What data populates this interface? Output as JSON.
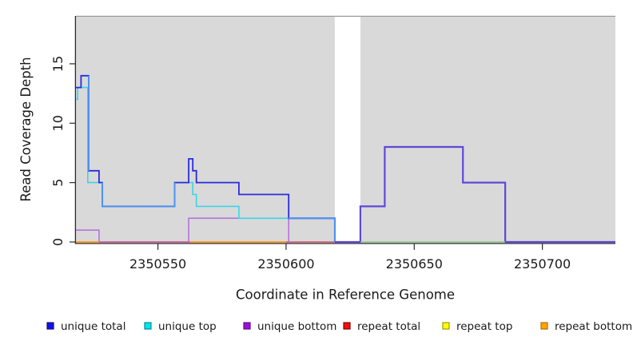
{
  "figure": {
    "x_axis_label": "Coordinate in Reference Genome",
    "y_axis_label": "Read Coverage Depth"
  },
  "chart_data": {
    "type": "line",
    "title": "",
    "xlabel": "Coordinate in Reference Genome",
    "ylabel": "Read Coverage Depth",
    "xlim": [
      2350518,
      2350728.5
    ],
    "ylim": [
      0,
      19
    ],
    "x_ticks": [
      2350550,
      2350600,
      2350650,
      2350700
    ],
    "y_ticks": [
      0,
      5,
      10,
      15
    ],
    "grid": false,
    "plot_bg": "#D9D9D9",
    "masked_region": {
      "x1": 2350619,
      "x2": 2350629
    },
    "series": [
      {
        "name": "unique total",
        "color": "#2B2BDC",
        "segments": [
          [
            2350518,
            2350520,
            13
          ],
          [
            2350520,
            2350523,
            14
          ],
          [
            2350523,
            2350527,
            6
          ],
          [
            2350527,
            2350528.3,
            5
          ],
          [
            2350528.3,
            2350556.5,
            3
          ],
          [
            2350556.5,
            2350562,
            5
          ],
          [
            2350562,
            2350563.6,
            7
          ],
          [
            2350563.6,
            2350565,
            6
          ],
          [
            2350565,
            2350581.6,
            5
          ],
          [
            2350581.6,
            2350601,
            4
          ],
          [
            2350601,
            2350619,
            2
          ],
          [
            2350619,
            2350629,
            0
          ],
          [
            2350629,
            2350638.5,
            3
          ],
          [
            2350638.5,
            2350669,
            8
          ],
          [
            2350669,
            2350685.5,
            5
          ],
          [
            2350685.5,
            2350728.5,
            0
          ]
        ]
      },
      {
        "name": "unique top",
        "color": "#3DD3E6",
        "segments": [
          [
            2350518,
            2350518.7,
            12
          ],
          [
            2350518.7,
            2350522.6,
            13
          ],
          [
            2350522.6,
            2350528.3,
            5
          ],
          [
            2350528.3,
            2350556.5,
            3
          ],
          [
            2350556.5,
            2350563.6,
            5
          ],
          [
            2350563.6,
            2350565,
            4
          ],
          [
            2350565,
            2350581.6,
            3
          ],
          [
            2350581.6,
            2350619,
            2
          ],
          [
            2350629,
            2350685.5,
            0
          ]
        ]
      },
      {
        "name": "unique bottom",
        "color": "#B46BDF",
        "segments": [
          [
            2350518,
            2350527,
            1
          ],
          [
            2350527,
            2350562,
            0
          ],
          [
            2350562,
            2350601,
            2
          ],
          [
            2350601,
            2350619,
            0
          ],
          [
            2350629,
            2350638.5,
            3
          ],
          [
            2350638.5,
            2350669,
            8
          ],
          [
            2350669,
            2350685.5,
            5
          ],
          [
            2350685.5,
            2350728.5,
            0
          ]
        ]
      },
      {
        "name": "repeat total",
        "color": "#D5506B",
        "segments": [
          [
            2350518,
            2350619,
            0
          ]
        ]
      },
      {
        "name": "repeat top",
        "color": "#EEEE00",
        "segments": [
          [
            2350629,
            2350685.5,
            0
          ]
        ]
      },
      {
        "name": "repeat bottom",
        "color": "#FFA018",
        "segments": [
          [
            2350518,
            2350527,
            0
          ],
          [
            2350562,
            2350600,
            0
          ]
        ]
      }
    ],
    "render_lines": [
      {
        "name": "repeat-total-baseline",
        "color": "#D5506B",
        "width": 1.5,
        "points": [
          [
            2350518,
            0
          ],
          [
            2350619,
            0
          ]
        ]
      },
      {
        "name": "repeat-total-unique-bottom-overlap",
        "color": "#C75E9E",
        "width": 1.5,
        "points": [
          [
            2350527,
            0
          ],
          [
            2350562,
            0
          ]
        ]
      },
      {
        "name": "repeat-bottom-left",
        "color": "#FFA018",
        "width": 1.8,
        "points": [
          [
            2350518,
            0
          ],
          [
            2350527,
            0
          ]
        ]
      },
      {
        "name": "repeat-bottom-mid",
        "color": "#FFA018",
        "width": 1.8,
        "points": [
          [
            2350562.5,
            0
          ],
          [
            2350600,
            0
          ]
        ]
      },
      {
        "name": "unique-bottom-left",
        "color": "#B46BDF",
        "width": 1.5,
        "points": [
          [
            2350518,
            1
          ],
          [
            2350527,
            1
          ],
          [
            2350527,
            0
          ]
        ]
      },
      {
        "name": "unique-bottom-mid",
        "color": "#B46BDF",
        "width": 1.5,
        "points": [
          [
            2350562,
            0
          ],
          [
            2350562,
            2
          ],
          [
            2350601,
            2
          ],
          [
            2350601,
            0
          ]
        ]
      },
      {
        "name": "unique-top-line",
        "color": "#3DD3E6",
        "width": 1.6,
        "points": [
          [
            2350518,
            12
          ],
          [
            2350518.7,
            12
          ],
          [
            2350518.7,
            13
          ],
          [
            2350522.6,
            13
          ],
          [
            2350522.6,
            5
          ],
          [
            2350528.3,
            5
          ],
          [
            2350528.3,
            3
          ],
          [
            2350556.5,
            3
          ],
          [
            2350556.5,
            5
          ],
          [
            2350563.6,
            5
          ],
          [
            2350563.6,
            4
          ],
          [
            2350565,
            4
          ],
          [
            2350565,
            3
          ],
          [
            2350581.6,
            3
          ],
          [
            2350581.6,
            2
          ],
          [
            2350619,
            2
          ],
          [
            2350619,
            0
          ]
        ]
      },
      {
        "name": "unique-total-line",
        "color": "#2B2BDC",
        "width": 1.8,
        "points": [
          [
            2350518,
            13
          ],
          [
            2350520,
            13
          ],
          [
            2350520,
            14
          ],
          [
            2350523,
            14
          ],
          [
            2350523,
            6
          ],
          [
            2350527,
            6
          ],
          [
            2350527,
            5
          ],
          [
            2350528.3,
            5
          ],
          [
            2350528.3,
            3
          ],
          [
            2350556.5,
            3
          ],
          [
            2350556.5,
            5
          ],
          [
            2350562,
            5
          ],
          [
            2350562,
            7
          ],
          [
            2350563.6,
            7
          ],
          [
            2350563.6,
            6
          ],
          [
            2350565,
            6
          ],
          [
            2350565,
            5
          ],
          [
            2350581.6,
            5
          ],
          [
            2350581.6,
            4
          ],
          [
            2350601,
            4
          ],
          [
            2350601,
            2
          ],
          [
            2350619,
            2
          ],
          [
            2350619,
            0
          ]
        ]
      },
      {
        "name": "total-top-overlap-a",
        "color": "#4C92F2",
        "width": 2,
        "points": [
          [
            2350523,
            14
          ],
          [
            2350523,
            6
          ]
        ]
      },
      {
        "name": "total-top-overlap-b",
        "color": "#4C92F2",
        "width": 2,
        "points": [
          [
            2350528.3,
            5
          ],
          [
            2350528.3,
            3
          ],
          [
            2350556.5,
            3
          ],
          [
            2350556.5,
            5
          ]
        ]
      },
      {
        "name": "total-top-overlap-c",
        "color": "#4C92F2",
        "width": 2,
        "points": [
          [
            2350601,
            2
          ],
          [
            2350619,
            2
          ],
          [
            2350619,
            0
          ]
        ]
      },
      {
        "name": "right-unique-total-bottom",
        "color": "#5F48D8",
        "width": 2.2,
        "points": [
          [
            2350619,
            0
          ],
          [
            2350629,
            0
          ],
          [
            2350629,
            3
          ],
          [
            2350638.5,
            3
          ],
          [
            2350638.5,
            8
          ],
          [
            2350669,
            8
          ],
          [
            2350669,
            5
          ],
          [
            2350685.5,
            5
          ],
          [
            2350685.5,
            0
          ],
          [
            2350728.5,
            0
          ]
        ]
      },
      {
        "name": "right-baseline-green",
        "color": "#8BC98B",
        "width": 1.5,
        "points": [
          [
            2350629,
            0
          ],
          [
            2350685.5,
            0
          ]
        ]
      }
    ]
  },
  "legend": {
    "items": [
      {
        "label": "unique total",
        "fill": "#1010EE",
        "border": "#101080"
      },
      {
        "label": "unique top",
        "fill": "#00E5EE",
        "border": "#008B9B"
      },
      {
        "label": "unique bottom",
        "fill": "#9B0FE0",
        "border": "#5E0A8A"
      },
      {
        "label": "repeat total",
        "fill": "#EE1111",
        "border": "#8B0000"
      },
      {
        "label": "repeat top",
        "fill": "#FFFF00",
        "border": "#9B9B00"
      },
      {
        "label": "repeat bottom",
        "fill": "#FFA500",
        "border": "#B86B00"
      }
    ]
  }
}
